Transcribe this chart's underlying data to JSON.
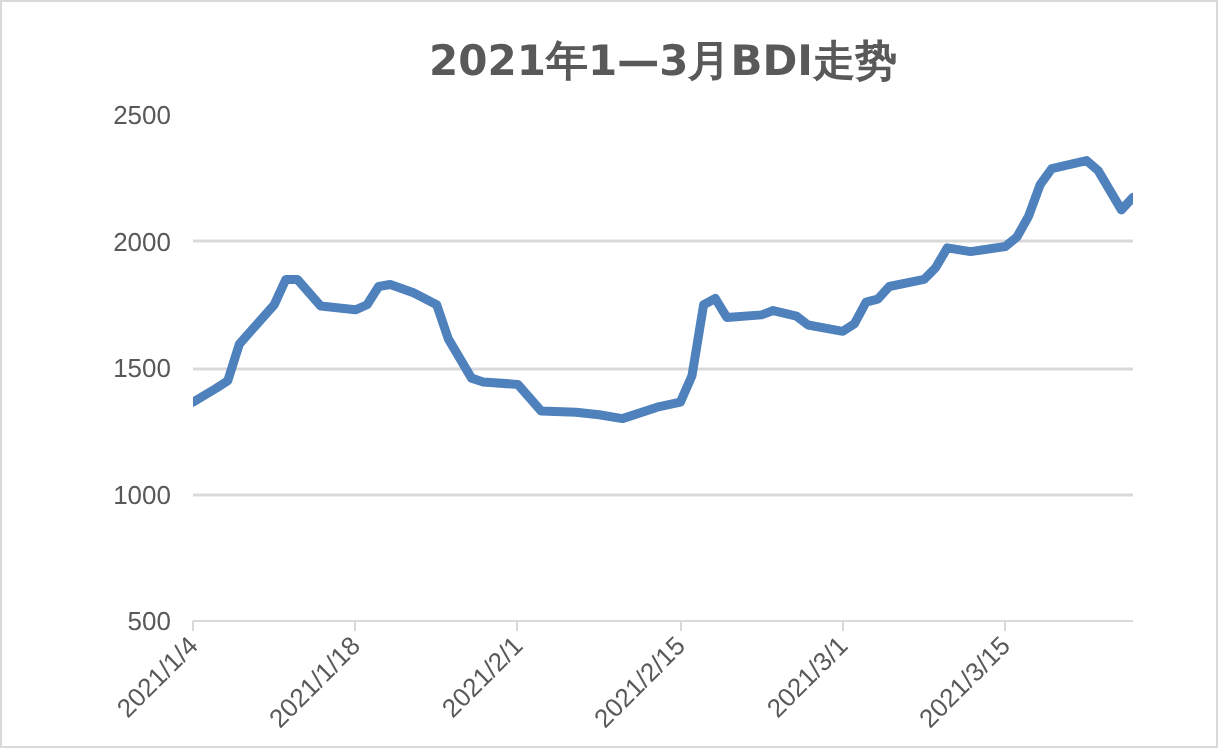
{
  "chart_data": {
    "type": "line",
    "title": "2021年1—3月BDI走势",
    "x": [
      "2021-01-04",
      "2021-01-06",
      "2021-01-07",
      "2021-01-08",
      "2021-01-11",
      "2021-01-12",
      "2021-01-13",
      "2021-01-15",
      "2021-01-18",
      "2021-01-19",
      "2021-01-20",
      "2021-01-21",
      "2021-01-23",
      "2021-01-25",
      "2021-01-26",
      "2021-01-28",
      "2021-01-29",
      "2021-02-01",
      "2021-02-03",
      "2021-02-06",
      "2021-02-08",
      "2021-02-10",
      "2021-02-13",
      "2021-02-15",
      "2021-02-16",
      "2021-02-17",
      "2021-02-18",
      "2021-02-19",
      "2021-02-22",
      "2021-02-23",
      "2021-02-25",
      "2021-02-26",
      "2021-03-01",
      "2021-03-02",
      "2021-03-03",
      "2021-03-04",
      "2021-03-05",
      "2021-03-08",
      "2021-03-09",
      "2021-03-10",
      "2021-03-12",
      "2021-03-15",
      "2021-03-16",
      "2021-03-17",
      "2021-03-18",
      "2021-03-19",
      "2021-03-22",
      "2021-03-23",
      "2021-03-25",
      "2021-03-26"
    ],
    "series": [
      {
        "color": "#4f81bd",
        "values": [
          1365,
          1420,
          1450,
          1595,
          1750,
          1850,
          1850,
          1745,
          1730,
          1750,
          1822,
          1830,
          1797,
          1750,
          1615,
          1460,
          1445,
          1435,
          1330,
          1325,
          1315,
          1300,
          1345,
          1365,
          1470,
          1750,
          1775,
          1700,
          1710,
          1727,
          1705,
          1670,
          1645,
          1675,
          1760,
          1772,
          1822,
          1850,
          1897,
          1975,
          1960,
          1980,
          2018,
          2100,
          2225,
          2288,
          2320,
          2280,
          2125,
          2175
        ]
      }
    ],
    "xlim": [
      "2021-01-04",
      "2021-03-26"
    ],
    "xticks": [
      {
        "value": "2021-01-04",
        "label": "2021/1/4"
      },
      {
        "value": "2021-01-18",
        "label": "2021/1/18"
      },
      {
        "value": "2021-02-01",
        "label": "2021/2/1"
      },
      {
        "value": "2021-02-15",
        "label": "2021/2/15"
      },
      {
        "value": "2021-03-01",
        "label": "2021/3/1"
      },
      {
        "value": "2021-03-15",
        "label": "2021/3/15"
      }
    ],
    "ylim": [
      500,
      2500
    ],
    "yticks": [
      500,
      1000,
      1500,
      2000,
      2500
    ],
    "grid": "y",
    "marker": "none",
    "line_style": "solid"
  }
}
